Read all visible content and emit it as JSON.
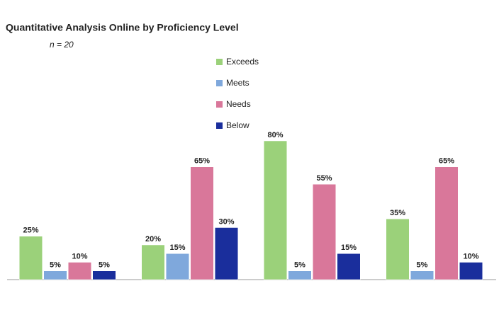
{
  "chart_data": {
    "type": "bar",
    "title": "Quantitative Analysis Online by Proficiency Level",
    "subtitle": "n = 20",
    "categories": [
      null,
      null,
      null,
      null
    ],
    "series": [
      {
        "name": "Exceeds",
        "color": "#9bd17a",
        "values": [
          25,
          20,
          80,
          35
        ],
        "value_labels": [
          "25%",
          "20%",
          "80%",
          "35%"
        ]
      },
      {
        "name": "Meets",
        "color": "#7fa8dc",
        "values": [
          5,
          15,
          5,
          5
        ],
        "value_labels": [
          "5%",
          "15%",
          "5%",
          "5%"
        ]
      },
      {
        "name": "Needs",
        "color": "#d9779a",
        "values": [
          10,
          65,
          55,
          65
        ],
        "value_labels": [
          "10%",
          "65%",
          "55%",
          "65%"
        ]
      },
      {
        "name": "Below",
        "color": "#1a2e9c",
        "values": [
          5,
          30,
          15,
          10
        ],
        "value_labels": [
          "5%",
          "30%",
          "15%",
          "10%"
        ]
      }
    ],
    "ylim": [
      0,
      100
    ],
    "legend": "right"
  }
}
